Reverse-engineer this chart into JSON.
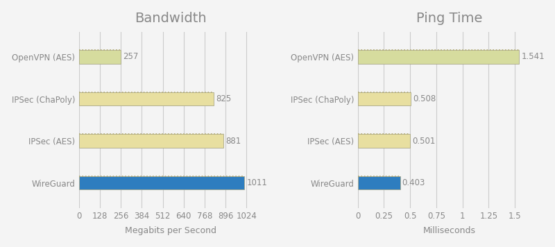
{
  "bandwidth": {
    "title": "Bandwidth",
    "categories": [
      "WireGuard",
      "IPSec (AES)",
      "IPSec (ChaPoly)",
      "OpenVPN (AES)"
    ],
    "values": [
      1011,
      881,
      825,
      257
    ],
    "colors": [
      "#2e7dbf",
      "#e8dfa0",
      "#e8dfa0",
      "#d6dc9e"
    ],
    "xlabel": "Megabits per Second",
    "xlim": [
      0,
      1120
    ],
    "xticks": [
      0,
      128,
      256,
      384,
      512,
      640,
      768,
      896,
      1024
    ],
    "xtick_labels": [
      "0",
      "128",
      "256",
      "384",
      "512",
      "640",
      "768",
      "896",
      "1024"
    ],
    "bar_labels": [
      "1011",
      "881",
      "825",
      "257"
    ]
  },
  "ping": {
    "title": "Ping Time",
    "categories": [
      "WireGuard",
      "IPSec (AES)",
      "IPSec (ChaPoly)",
      "OpenVPN (AES)"
    ],
    "values": [
      0.403,
      0.501,
      0.508,
      1.541
    ],
    "colors": [
      "#2e7dbf",
      "#e8dfa0",
      "#e8dfa0",
      "#d6dc9e"
    ],
    "xlabel": "Milliseconds",
    "xlim": [
      0,
      1.75
    ],
    "xticks": [
      0,
      0.25,
      0.5,
      0.75,
      1,
      1.25,
      1.5
    ],
    "xtick_labels": [
      "0",
      "0.25",
      "0.5",
      "0.75",
      "1",
      "1.25",
      "1.5"
    ],
    "bar_labels": [
      "0.403",
      "0.501",
      "0.508",
      "1.541"
    ]
  },
  "bg_color": "#f4f4f4",
  "plot_bg_color": "#ffffff",
  "title_fontsize": 14,
  "label_fontsize": 8.5,
  "xlabel_fontsize": 9,
  "bar_height": 0.32,
  "text_color": "#888888",
  "grid_color": "#cccccc",
  "bar_edge_color": "#aaa88a",
  "bar_top_color": "#b0a870"
}
